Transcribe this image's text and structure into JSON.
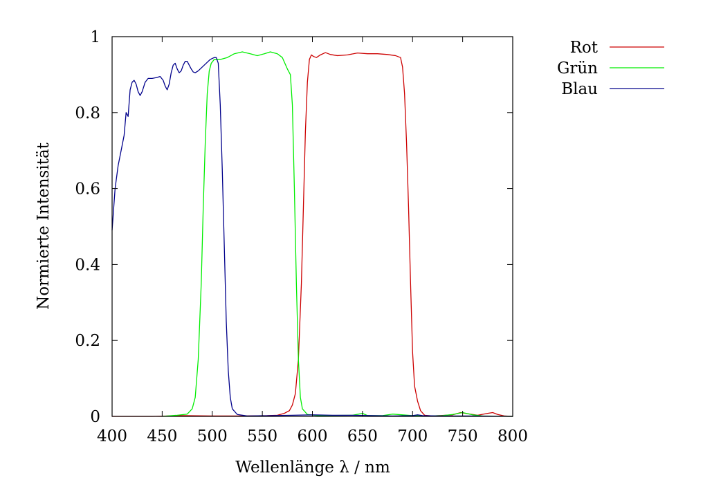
{
  "chart_data": {
    "type": "line",
    "xlabel": "Wellenlänge λ / nm",
    "ylabel": "Normierte Intensität",
    "xlim": [
      400,
      800
    ],
    "ylim": [
      0,
      1
    ],
    "xticks": [
      "400",
      "450",
      "500",
      "550",
      "600",
      "650",
      "700",
      "750",
      "800"
    ],
    "yticks": [
      "0",
      "0.2",
      "0.4",
      "0.6",
      "0.8",
      "1"
    ],
    "grid": false,
    "legend_position": "outside-top-right",
    "series": [
      {
        "name": "Rot",
        "color": "#cc0000",
        "points": [
          [
            400,
            0
          ],
          [
            440,
            0
          ],
          [
            470,
            0.002
          ],
          [
            500,
            0.001
          ],
          [
            530,
            0.001
          ],
          [
            555,
            0.002
          ],
          [
            565,
            0.003
          ],
          [
            572,
            0.008
          ],
          [
            577,
            0.015
          ],
          [
            580,
            0.03
          ],
          [
            583,
            0.06
          ],
          [
            586,
            0.15
          ],
          [
            589,
            0.35
          ],
          [
            591,
            0.55
          ],
          [
            593,
            0.75
          ],
          [
            595,
            0.88
          ],
          [
            597,
            0.94
          ],
          [
            599,
            0.952
          ],
          [
            601,
            0.948
          ],
          [
            604,
            0.945
          ],
          [
            608,
            0.952
          ],
          [
            613,
            0.958
          ],
          [
            618,
            0.953
          ],
          [
            625,
            0.95
          ],
          [
            635,
            0.952
          ],
          [
            645,
            0.957
          ],
          [
            655,
            0.955
          ],
          [
            665,
            0.955
          ],
          [
            675,
            0.953
          ],
          [
            683,
            0.95
          ],
          [
            688,
            0.945
          ],
          [
            690,
            0.92
          ],
          [
            692,
            0.85
          ],
          [
            694,
            0.72
          ],
          [
            696,
            0.55
          ],
          [
            698,
            0.35
          ],
          [
            700,
            0.17
          ],
          [
            702,
            0.08
          ],
          [
            705,
            0.04
          ],
          [
            708,
            0.015
          ],
          [
            712,
            0.003
          ],
          [
            720,
            0.001
          ],
          [
            740,
            0.004
          ],
          [
            748,
            0.01
          ],
          [
            755,
            0.007
          ],
          [
            765,
            0.003
          ],
          [
            775,
            0.008
          ],
          [
            780,
            0.01
          ],
          [
            785,
            0.005
          ],
          [
            792,
            0.001
          ],
          [
            800,
            0
          ]
        ]
      },
      {
        "name": "Grün",
        "color": "#00ee00",
        "points": [
          [
            450,
            0
          ],
          [
            465,
            0.003
          ],
          [
            475,
            0.006
          ],
          [
            480,
            0.02
          ],
          [
            483,
            0.05
          ],
          [
            486,
            0.15
          ],
          [
            489,
            0.35
          ],
          [
            491,
            0.55
          ],
          [
            493,
            0.72
          ],
          [
            495,
            0.85
          ],
          [
            497,
            0.91
          ],
          [
            499,
            0.93
          ],
          [
            502,
            0.94
          ],
          [
            508,
            0.94
          ],
          [
            515,
            0.945
          ],
          [
            522,
            0.955
          ],
          [
            530,
            0.96
          ],
          [
            538,
            0.955
          ],
          [
            545,
            0.95
          ],
          [
            552,
            0.955
          ],
          [
            558,
            0.96
          ],
          [
            565,
            0.955
          ],
          [
            570,
            0.945
          ],
          [
            575,
            0.915
          ],
          [
            578,
            0.9
          ],
          [
            580,
            0.82
          ],
          [
            582,
            0.6
          ],
          [
            584,
            0.35
          ],
          [
            586,
            0.15
          ],
          [
            588,
            0.05
          ],
          [
            590,
            0.02
          ],
          [
            595,
            0.005
          ],
          [
            605,
            0.002
          ],
          [
            640,
            0.003
          ],
          [
            650,
            0.008
          ],
          [
            655,
            0.002
          ],
          [
            670,
            0.002
          ],
          [
            680,
            0.006
          ],
          [
            690,
            0.004
          ],
          [
            700,
            0.002
          ],
          [
            710,
            0.001
          ],
          [
            730,
            0.002
          ],
          [
            740,
            0.005
          ],
          [
            750,
            0.01
          ],
          [
            760,
            0.004
          ],
          [
            770,
            0.001
          ],
          [
            800,
            0
          ]
        ]
      },
      {
        "name": "Blau",
        "color": "#00008b",
        "points": [
          [
            400,
            0.49
          ],
          [
            403,
            0.6
          ],
          [
            406,
            0.66
          ],
          [
            409,
            0.7
          ],
          [
            412,
            0.74
          ],
          [
            414,
            0.8
          ],
          [
            416,
            0.79
          ],
          [
            418,
            0.86
          ],
          [
            420,
            0.88
          ],
          [
            422,
            0.885
          ],
          [
            424,
            0.875
          ],
          [
            426,
            0.855
          ],
          [
            428,
            0.845
          ],
          [
            430,
            0.855
          ],
          [
            433,
            0.88
          ],
          [
            436,
            0.89
          ],
          [
            440,
            0.89
          ],
          [
            444,
            0.892
          ],
          [
            448,
            0.895
          ],
          [
            451,
            0.885
          ],
          [
            453,
            0.87
          ],
          [
            455,
            0.86
          ],
          [
            457,
            0.875
          ],
          [
            459,
            0.905
          ],
          [
            461,
            0.925
          ],
          [
            463,
            0.93
          ],
          [
            465,
            0.915
          ],
          [
            467,
            0.905
          ],
          [
            469,
            0.91
          ],
          [
            471,
            0.925
          ],
          [
            473,
            0.935
          ],
          [
            475,
            0.935
          ],
          [
            477,
            0.925
          ],
          [
            479,
            0.915
          ],
          [
            481,
            0.907
          ],
          [
            483,
            0.905
          ],
          [
            486,
            0.91
          ],
          [
            490,
            0.92
          ],
          [
            494,
            0.93
          ],
          [
            498,
            0.94
          ],
          [
            502,
            0.945
          ],
          [
            504,
            0.945
          ],
          [
            506,
            0.93
          ],
          [
            508,
            0.82
          ],
          [
            510,
            0.65
          ],
          [
            512,
            0.45
          ],
          [
            514,
            0.25
          ],
          [
            516,
            0.12
          ],
          [
            518,
            0.05
          ],
          [
            520,
            0.02
          ],
          [
            525,
            0.005
          ],
          [
            535,
            0.001
          ],
          [
            560,
            0.002
          ],
          [
            580,
            0.003
          ],
          [
            600,
            0.004
          ],
          [
            620,
            0.003
          ],
          [
            640,
            0.003
          ],
          [
            660,
            0.002
          ],
          [
            680,
            0.001
          ],
          [
            700,
            0.002
          ],
          [
            705,
            0.004
          ],
          [
            710,
            0.002
          ],
          [
            730,
            0.001
          ],
          [
            760,
            0.001
          ],
          [
            800,
            0
          ]
        ]
      }
    ]
  }
}
